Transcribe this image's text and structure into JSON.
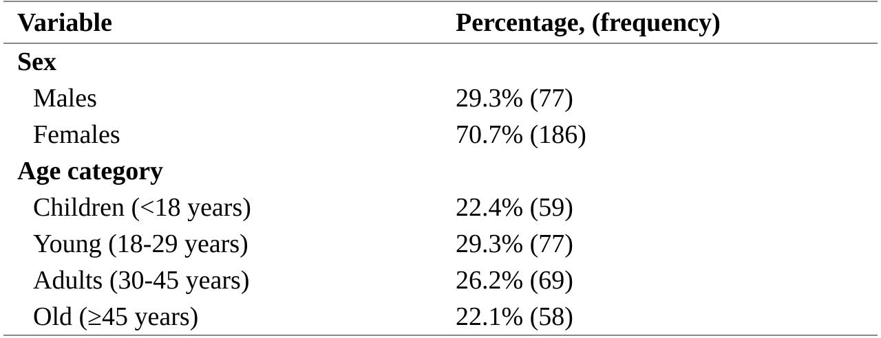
{
  "table": {
    "header": [
      "Variable",
      "Percentage, (frequency)"
    ],
    "sections": [
      {
        "title": "Sex",
        "rows": [
          [
            "Males",
            "29.3% (77)"
          ],
          [
            "Females",
            "70.7% (186)"
          ]
        ]
      },
      {
        "title": "Age category",
        "rows": [
          [
            "Children (<18 years)",
            "22.4% (59)"
          ],
          [
            "Young (18-29 years)",
            "29.3% (77)"
          ],
          [
            "Adults (30-45 years)",
            "26.2% (69)"
          ],
          [
            "Old (≥45 years)",
            "22.1% (58)"
          ]
        ]
      }
    ]
  }
}
